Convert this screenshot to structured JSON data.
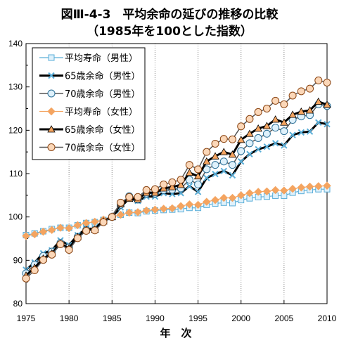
{
  "title": "図Ⅲ-4-3　平均余命の延びの推移の比較",
  "subtitle": "（1985年を100とした指数）",
  "chart_data": {
    "type": "line",
    "xlabel": "年　次",
    "ylabel": "",
    "xlim": [
      1975,
      2010
    ],
    "ylim": [
      80,
      140
    ],
    "x_ticks": [
      "1975",
      "1980",
      "1985",
      "1990",
      "1995",
      "2000",
      "2005",
      "2010"
    ],
    "y_ticks": [
      "80",
      "90",
      "100",
      "110",
      "120",
      "130",
      "140"
    ],
    "grid": "vertical dotted",
    "legend_position": "top-left",
    "x": [
      1975,
      1976,
      1977,
      1978,
      1979,
      1980,
      1981,
      1982,
      1983,
      1984,
      1985,
      1986,
      1987,
      1988,
      1989,
      1990,
      1991,
      1992,
      1993,
      1994,
      1995,
      1996,
      1997,
      1998,
      1999,
      2000,
      2001,
      2002,
      2003,
      2004,
      2005,
      2006,
      2007,
      2008,
      2009,
      2010
    ],
    "series": [
      {
        "name": "平均寿命（男性）",
        "color": "#5aaed8",
        "marker": "square",
        "values": [
          95.8,
          96.2,
          96.7,
          97.2,
          97.5,
          97.5,
          98.1,
          98.6,
          98.8,
          99.3,
          100.0,
          100.5,
          101.0,
          100.9,
          101.3,
          101.5,
          101.6,
          101.7,
          101.8,
          102.1,
          102.1,
          102.8,
          103.1,
          103.3,
          103.2,
          103.9,
          104.3,
          104.6,
          104.7,
          104.9,
          104.9,
          105.6,
          106.0,
          106.2,
          106.4,
          106.4
        ]
      },
      {
        "name": "65歳余命（男性）",
        "color": "#5aaed8",
        "marker": "x",
        "values": [
          87.8,
          89.5,
          91.6,
          92.3,
          94.6,
          93.5,
          95.8,
          97.3,
          97.3,
          99.2,
          100.0,
          102.2,
          104.3,
          103.7,
          104.7,
          104.7,
          105.5,
          105.3,
          105.5,
          107.1,
          105.8,
          109.0,
          109.9,
          110.6,
          109.6,
          112.8,
          114.5,
          115.6,
          116.2,
          117.0,
          116.5,
          118.9,
          119.5,
          119.7,
          121.8,
          121.4
        ]
      },
      {
        "name": "70歳余命（男性）",
        "color": "#5aaed8",
        "marker": "circle",
        "values": [
          87.0,
          89.0,
          91.0,
          92.0,
          94.0,
          93.0,
          95.4,
          97.0,
          97.0,
          99.0,
          100.0,
          102.8,
          104.8,
          104.0,
          105.4,
          105.4,
          106.2,
          106.3,
          106.6,
          108.6,
          107.5,
          111.0,
          112.0,
          112.8,
          112.0,
          115.2,
          117.0,
          118.2,
          119.2,
          120.6,
          119.8,
          122.4,
          123.2,
          123.5,
          126.0,
          125.6
        ]
      },
      {
        "name": "平均寿命（女性）",
        "color": "#f4a460",
        "marker": "diamond",
        "values": [
          95.6,
          96.0,
          96.6,
          97.0,
          97.5,
          97.4,
          98.1,
          98.6,
          98.9,
          99.4,
          100.0,
          100.5,
          101.0,
          101.1,
          101.5,
          101.7,
          101.9,
          102.0,
          102.5,
          102.9,
          102.8,
          103.5,
          103.9,
          104.4,
          104.4,
          105.0,
          105.5,
          105.8,
          105.9,
          106.2,
          106.1,
          106.5,
          106.8,
          107.0,
          107.1,
          107.2
        ]
      },
      {
        "name": "65歳余命（女性）",
        "color": "#f4a460",
        "marker": "triangle",
        "values": [
          86.5,
          88.3,
          90.4,
          91.6,
          93.8,
          92.8,
          95.4,
          97.0,
          97.1,
          99.0,
          100.0,
          103.0,
          104.2,
          104.1,
          105.6,
          105.6,
          106.6,
          106.9,
          107.4,
          110.2,
          109.4,
          112.8,
          114.0,
          115.0,
          114.4,
          117.8,
          119.2,
          120.4,
          121.0,
          122.5,
          121.8,
          123.6,
          124.3,
          124.6,
          126.6,
          125.9
        ]
      },
      {
        "name": "70歳余命（女性）",
        "color": "#f4a460",
        "marker": "circle",
        "values": [
          85.8,
          87.7,
          90.1,
          91.3,
          93.7,
          92.4,
          95.1,
          96.8,
          96.9,
          98.8,
          100.0,
          103.3,
          104.6,
          104.6,
          106.2,
          106.4,
          107.5,
          108.0,
          108.6,
          112.0,
          111.0,
          115.0,
          116.9,
          118.0,
          117.9,
          120.9,
          122.6,
          124.2,
          125.0,
          126.8,
          126.0,
          128.0,
          129.0,
          129.6,
          131.5,
          131.0
        ]
      }
    ]
  }
}
